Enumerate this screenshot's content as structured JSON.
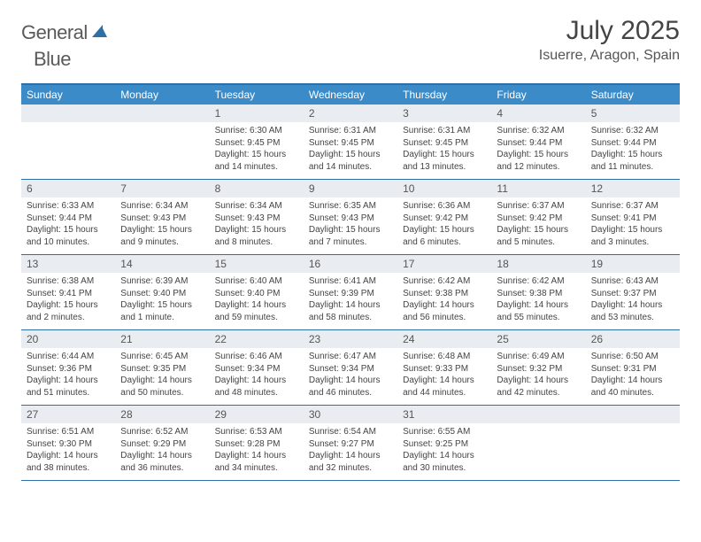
{
  "brand": {
    "word1": "General",
    "word2": "Blue"
  },
  "title": "July 2025",
  "location": "Isuerre, Aragon, Spain",
  "colors": {
    "header_bar": "#3b8bc9",
    "rule": "#2f6fa7",
    "daynum_bg": "#e9edf1",
    "text": "#444444",
    "brand_gray": "#5a5a5a",
    "brand_blue": "#2f6fa7"
  },
  "dow": [
    "Sunday",
    "Monday",
    "Tuesday",
    "Wednesday",
    "Thursday",
    "Friday",
    "Saturday"
  ],
  "weeks": [
    [
      null,
      null,
      {
        "n": "1",
        "sr": "6:30 AM",
        "ss": "9:45 PM",
        "dl": "15 hours and 14 minutes."
      },
      {
        "n": "2",
        "sr": "6:31 AM",
        "ss": "9:45 PM",
        "dl": "15 hours and 14 minutes."
      },
      {
        "n": "3",
        "sr": "6:31 AM",
        "ss": "9:45 PM",
        "dl": "15 hours and 13 minutes."
      },
      {
        "n": "4",
        "sr": "6:32 AM",
        "ss": "9:44 PM",
        "dl": "15 hours and 12 minutes."
      },
      {
        "n": "5",
        "sr": "6:32 AM",
        "ss": "9:44 PM",
        "dl": "15 hours and 11 minutes."
      }
    ],
    [
      {
        "n": "6",
        "sr": "6:33 AM",
        "ss": "9:44 PM",
        "dl": "15 hours and 10 minutes."
      },
      {
        "n": "7",
        "sr": "6:34 AM",
        "ss": "9:43 PM",
        "dl": "15 hours and 9 minutes."
      },
      {
        "n": "8",
        "sr": "6:34 AM",
        "ss": "9:43 PM",
        "dl": "15 hours and 8 minutes."
      },
      {
        "n": "9",
        "sr": "6:35 AM",
        "ss": "9:43 PM",
        "dl": "15 hours and 7 minutes."
      },
      {
        "n": "10",
        "sr": "6:36 AM",
        "ss": "9:42 PM",
        "dl": "15 hours and 6 minutes."
      },
      {
        "n": "11",
        "sr": "6:37 AM",
        "ss": "9:42 PM",
        "dl": "15 hours and 5 minutes."
      },
      {
        "n": "12",
        "sr": "6:37 AM",
        "ss": "9:41 PM",
        "dl": "15 hours and 3 minutes."
      }
    ],
    [
      {
        "n": "13",
        "sr": "6:38 AM",
        "ss": "9:41 PM",
        "dl": "15 hours and 2 minutes."
      },
      {
        "n": "14",
        "sr": "6:39 AM",
        "ss": "9:40 PM",
        "dl": "15 hours and 1 minute."
      },
      {
        "n": "15",
        "sr": "6:40 AM",
        "ss": "9:40 PM",
        "dl": "14 hours and 59 minutes."
      },
      {
        "n": "16",
        "sr": "6:41 AM",
        "ss": "9:39 PM",
        "dl": "14 hours and 58 minutes."
      },
      {
        "n": "17",
        "sr": "6:42 AM",
        "ss": "9:38 PM",
        "dl": "14 hours and 56 minutes."
      },
      {
        "n": "18",
        "sr": "6:42 AM",
        "ss": "9:38 PM",
        "dl": "14 hours and 55 minutes."
      },
      {
        "n": "19",
        "sr": "6:43 AM",
        "ss": "9:37 PM",
        "dl": "14 hours and 53 minutes."
      }
    ],
    [
      {
        "n": "20",
        "sr": "6:44 AM",
        "ss": "9:36 PM",
        "dl": "14 hours and 51 minutes."
      },
      {
        "n": "21",
        "sr": "6:45 AM",
        "ss": "9:35 PM",
        "dl": "14 hours and 50 minutes."
      },
      {
        "n": "22",
        "sr": "6:46 AM",
        "ss": "9:34 PM",
        "dl": "14 hours and 48 minutes."
      },
      {
        "n": "23",
        "sr": "6:47 AM",
        "ss": "9:34 PM",
        "dl": "14 hours and 46 minutes."
      },
      {
        "n": "24",
        "sr": "6:48 AM",
        "ss": "9:33 PM",
        "dl": "14 hours and 44 minutes."
      },
      {
        "n": "25",
        "sr": "6:49 AM",
        "ss": "9:32 PM",
        "dl": "14 hours and 42 minutes."
      },
      {
        "n": "26",
        "sr": "6:50 AM",
        "ss": "9:31 PM",
        "dl": "14 hours and 40 minutes."
      }
    ],
    [
      {
        "n": "27",
        "sr": "6:51 AM",
        "ss": "9:30 PM",
        "dl": "14 hours and 38 minutes."
      },
      {
        "n": "28",
        "sr": "6:52 AM",
        "ss": "9:29 PM",
        "dl": "14 hours and 36 minutes."
      },
      {
        "n": "29",
        "sr": "6:53 AM",
        "ss": "9:28 PM",
        "dl": "14 hours and 34 minutes."
      },
      {
        "n": "30",
        "sr": "6:54 AM",
        "ss": "9:27 PM",
        "dl": "14 hours and 32 minutes."
      },
      {
        "n": "31",
        "sr": "6:55 AM",
        "ss": "9:25 PM",
        "dl": "14 hours and 30 minutes."
      },
      null,
      null
    ]
  ],
  "labels": {
    "sunrise": "Sunrise:",
    "sunset": "Sunset:",
    "daylight": "Daylight:"
  }
}
